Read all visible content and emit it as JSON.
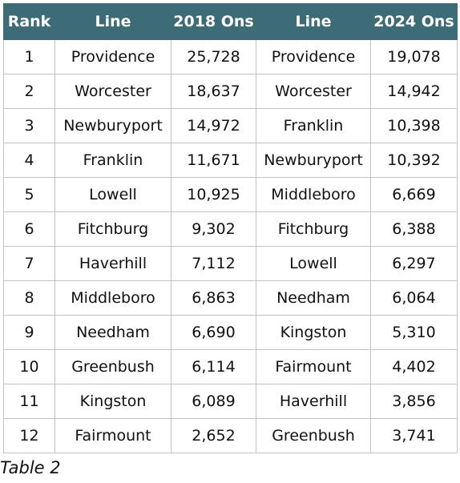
{
  "table": {
    "headers": [
      "Rank",
      "Line",
      "2018 Ons",
      "Line",
      "2024 Ons"
    ],
    "rows": [
      [
        "1",
        "Providence",
        "25,728",
        "Providence",
        "19,078"
      ],
      [
        "2",
        "Worcester",
        "18,637",
        "Worcester",
        "14,942"
      ],
      [
        "3",
        "Newburyport",
        "14,972",
        "Franklin",
        "10,398"
      ],
      [
        "4",
        "Franklin",
        "11,671",
        "Newburyport",
        "10,392"
      ],
      [
        "5",
        "Lowell",
        "10,925",
        "Middleboro",
        "6,669"
      ],
      [
        "6",
        "Fitchburg",
        "9,302",
        "Fitchburg",
        "6,388"
      ],
      [
        "7",
        "Haverhill",
        "7,112",
        "Lowell",
        "6,297"
      ],
      [
        "8",
        "Middleboro",
        "6,863",
        "Needham",
        "6,064"
      ],
      [
        "9",
        "Needham",
        "6,690",
        "Kingston",
        "5,310"
      ],
      [
        "10",
        "Greenbush",
        "6,114",
        "Fairmount",
        "4,402"
      ],
      [
        "11",
        "Kingston",
        "6,089",
        "Haverhill",
        "3,856"
      ],
      [
        "12",
        "Fairmount",
        "2,652",
        "Greenbush",
        "3,741"
      ]
    ]
  },
  "caption": "Table 2",
  "colors": {
    "header_bg": "#3d6b76",
    "header_text": "#ffffff",
    "border": "#bfc4c6"
  }
}
